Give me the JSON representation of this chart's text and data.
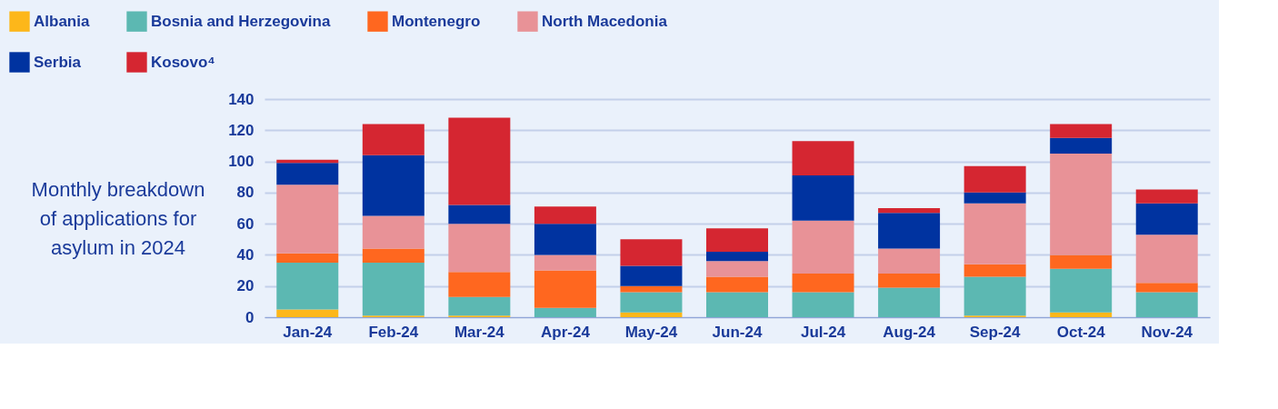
{
  "chart_data": {
    "type": "bar",
    "stacked": true,
    "title": "Monthly breakdown of applications for asylum in 2024",
    "categories": [
      "Jan-24",
      "Feb-24",
      "Mar-24",
      "Apr-24",
      "May-24",
      "Jun-24",
      "Jul-24",
      "Aug-24",
      "Sep-24",
      "Oct-24",
      "Nov-24"
    ],
    "series": [
      {
        "name": "Albania",
        "color": "#fdb71a",
        "values": [
          5,
          1,
          1,
          0,
          3,
          0,
          0,
          0,
          1,
          3,
          0
        ]
      },
      {
        "name": "Bosnia and Herzegovina",
        "color": "#5cb8b2",
        "values": [
          30,
          34,
          12,
          6,
          13,
          16,
          16,
          19,
          25,
          28,
          16
        ]
      },
      {
        "name": "Montenegro",
        "color": "#ff671f",
        "values": [
          6,
          9,
          16,
          24,
          4,
          10,
          12,
          9,
          8,
          9,
          6
        ]
      },
      {
        "name": "North Macedonia",
        "color": "#e89297",
        "values": [
          44,
          21,
          31,
          10,
          0,
          10,
          34,
          16,
          39,
          65,
          31
        ]
      },
      {
        "name": "Serbia",
        "color": "#0033a0",
        "values": [
          14,
          39,
          12,
          20,
          13,
          6,
          29,
          23,
          7,
          10,
          20
        ]
      },
      {
        "name": "Kosovo⁴",
        "color": "#d52631",
        "values": [
          2,
          20,
          56,
          11,
          17,
          15,
          22,
          3,
          17,
          9,
          9
        ]
      }
    ],
    "ylim": [
      0,
      140
    ],
    "yticks": [
      0,
      20,
      40,
      60,
      80,
      100,
      120,
      140
    ],
    "grid": "y",
    "legend": "top"
  }
}
